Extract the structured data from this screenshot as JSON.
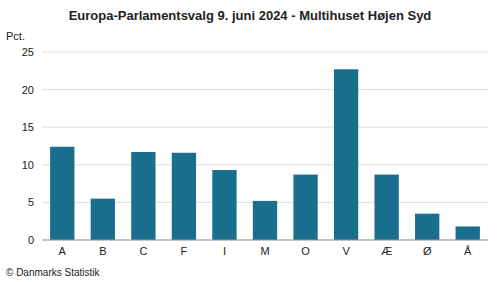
{
  "chart_data": {
    "type": "bar",
    "title": "Europa-Parlamentsvalg 9. juni 2024 - Multihuset Højen Syd",
    "categories": [
      "A",
      "B",
      "C",
      "F",
      "I",
      "M",
      "O",
      "V",
      "Æ",
      "Ø",
      "Å"
    ],
    "values": [
      12.4,
      5.5,
      11.7,
      11.6,
      9.3,
      5.2,
      8.7,
      22.7,
      8.7,
      3.5,
      1.8
    ],
    "color": "#1a6e8e",
    "ylabel": "Pct.",
    "annotations": [
      "© Danmarks Statistik"
    ],
    "ylim": [
      0,
      25
    ],
    "yticks": [
      0,
      5,
      10,
      15,
      20,
      25
    ],
    "grid": true
  }
}
